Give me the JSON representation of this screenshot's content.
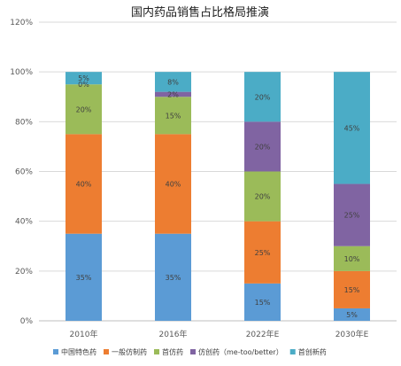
{
  "chart_data": {
    "type": "bar",
    "stacked": true,
    "title": "国内药品销售占比格局推演",
    "categories": [
      "2010年",
      "2016年",
      "2022年E",
      "2030年E"
    ],
    "y_ticks": [
      "0%",
      "20%",
      "40%",
      "60%",
      "80%",
      "100%",
      "120%"
    ],
    "ylim": [
      0,
      120
    ],
    "grid": true,
    "legend_position": "bottom",
    "series": [
      {
        "name": "中国特色药",
        "color": "#5b9bd5",
        "values": [
          35,
          35,
          15,
          5
        ],
        "labels": [
          "35%",
          "35%",
          "15%",
          "5%"
        ]
      },
      {
        "name": "一般仿制药",
        "color": "#ed7d31",
        "values": [
          40,
          40,
          25,
          15
        ],
        "labels": [
          "40%",
          "40%",
          "25%",
          "15%"
        ]
      },
      {
        "name": "首仿药",
        "color": "#9bbb59",
        "values": [
          20,
          15,
          20,
          10
        ],
        "labels": [
          "20%",
          "15%",
          "20%",
          "10%"
        ]
      },
      {
        "name": "仿创药（me-too/better）",
        "color": "#8064a2",
        "values": [
          0,
          2,
          20,
          25
        ],
        "labels": [
          "0%",
          "2%",
          "20%",
          "25%"
        ]
      },
      {
        "name": "首创新药",
        "color": "#4bacc6",
        "values": [
          5,
          8,
          20,
          45
        ],
        "labels": [
          "5%",
          "8%",
          "20%",
          "45%"
        ]
      }
    ]
  }
}
